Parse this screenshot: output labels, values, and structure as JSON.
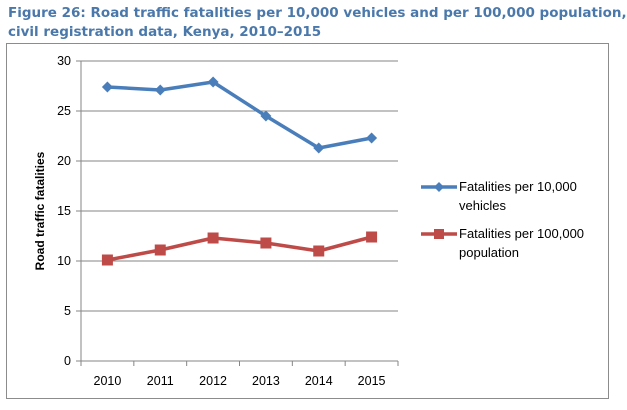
{
  "figure": {
    "title_line1": "Figure 26: Road traffic fatalities per 10,000 vehicles and per 100,000 population,",
    "title_line2": "civil registration data, Kenya, 2010–2015"
  },
  "chart_data": {
    "type": "line",
    "categories": [
      "2010",
      "2011",
      "2012",
      "2013",
      "2014",
      "2015"
    ],
    "series": [
      {
        "name": "Fatalities per 10,000 vehicles",
        "name_line1": "Fatalities per 10,000",
        "name_line2": "vehicles",
        "values": [
          27.4,
          27.1,
          27.9,
          24.5,
          21.3,
          22.3
        ],
        "color": "#4a7ebb",
        "marker": "diamond"
      },
      {
        "name": "Fatalities per 100,000 population",
        "name_line1": "Fatalities per 100,000",
        "name_line2": "population",
        "values": [
          10.1,
          11.1,
          12.3,
          11.8,
          11.0,
          12.4
        ],
        "color": "#be4b48",
        "marker": "square"
      }
    ],
    "ylabel": "Road traffic fatalities",
    "xlabel": "",
    "ylim": [
      0,
      30
    ],
    "yticks": [
      "0",
      "5",
      "10",
      "15",
      "20",
      "25",
      "30"
    ],
    "grid": true,
    "legend_position": "right"
  }
}
